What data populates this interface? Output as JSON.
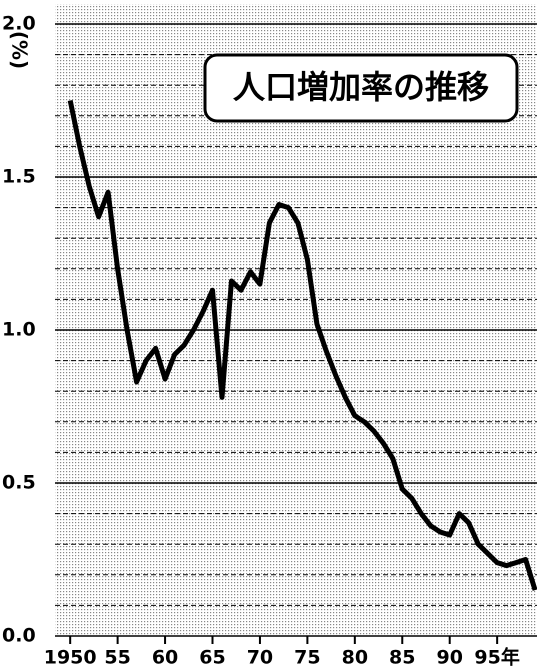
{
  "chart_data": {
    "type": "line",
    "title": "人口増加率の推移",
    "ylabel": "(%)",
    "x": [
      1950,
      1951,
      1952,
      1953,
      1954,
      1955,
      1956,
      1957,
      1958,
      1959,
      1960,
      1961,
      1962,
      1963,
      1964,
      1965,
      1966,
      1967,
      1968,
      1969,
      1970,
      1971,
      1972,
      1973,
      1974,
      1975,
      1976,
      1977,
      1978,
      1979,
      1980,
      1981,
      1982,
      1983,
      1984,
      1985,
      1986,
      1987,
      1988,
      1989,
      1990,
      1991,
      1992,
      1993,
      1994,
      1995,
      1996,
      1997,
      1998,
      1999
    ],
    "series": [
      {
        "color": "#000000",
        "values": [
          1.75,
          1.6,
          1.47,
          1.37,
          1.45,
          1.2,
          1.0,
          0.83,
          0.9,
          0.94,
          0.84,
          0.92,
          0.95,
          1.0,
          1.06,
          1.13,
          0.78,
          1.16,
          1.13,
          1.19,
          1.15,
          1.35,
          1.41,
          1.4,
          1.35,
          1.23,
          1.02,
          0.93,
          0.85,
          0.78,
          0.72,
          0.7,
          0.67,
          0.63,
          0.58,
          0.48,
          0.45,
          0.4,
          0.36,
          0.34,
          0.33,
          0.4,
          0.37,
          0.3,
          0.27,
          0.24,
          0.23,
          0.24,
          0.25,
          0.15
        ]
      }
    ],
    "xlim": [
      1948.4,
      1999.2
    ],
    "xticks": [
      {
        "value": 1950,
        "label": "1950"
      },
      {
        "value": 1955,
        "label": "55"
      },
      {
        "value": 1960,
        "label": "60"
      },
      {
        "value": 1965,
        "label": "65"
      },
      {
        "value": 1970,
        "label": "70"
      },
      {
        "value": 1975,
        "label": "75"
      },
      {
        "value": 1980,
        "label": "80"
      },
      {
        "value": 1985,
        "label": "85"
      },
      {
        "value": 1990,
        "label": "90"
      },
      {
        "value": 1995,
        "label": "95年"
      }
    ],
    "ylim": [
      0,
      2
    ],
    "yticks": [
      {
        "value": 0,
        "label": "0.0"
      },
      0.5,
      {
        "value": 1,
        "label": "1.0"
      },
      1.5,
      {
        "value": 2,
        "label": "2.0"
      }
    ],
    "grid": true
  }
}
